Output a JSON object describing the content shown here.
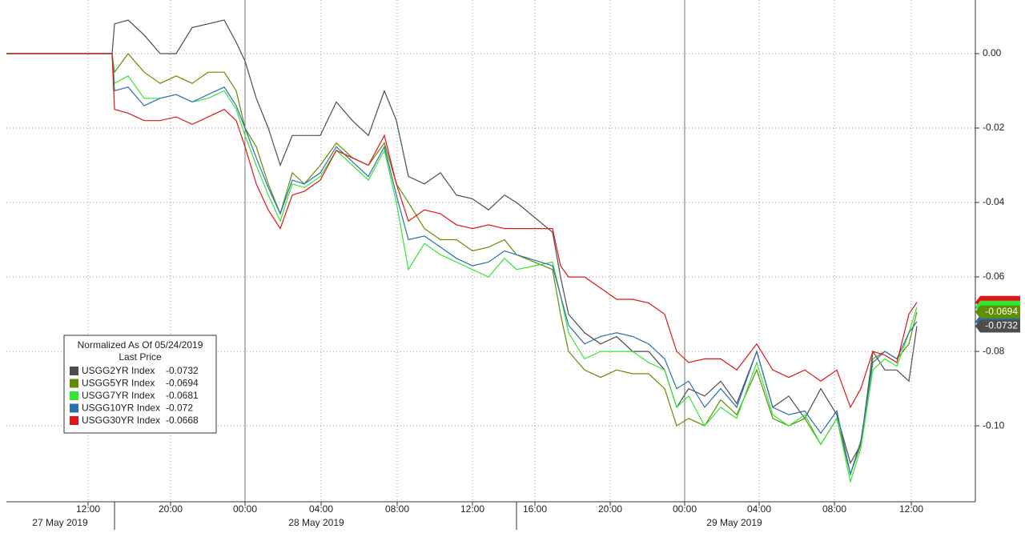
{
  "chart_data": {
    "type": "line",
    "legend_title": "Normalized As Of 05/24/2019",
    "legend_subtitle": "Last Price",
    "x": [
      0,
      6.6,
      6.75,
      7.6,
      8.6,
      9.6,
      10.6,
      11.6,
      12.6,
      13.6,
      14.35,
      14.9,
      15.6,
      16.35,
      17.1,
      17.85,
      18.6,
      19.6,
      20.6,
      21.6,
      22.6,
      23.6,
      24.35,
      25.1,
      26.1,
      27.1,
      28.1,
      29.1,
      30.1,
      31.1,
      31.85,
      34.1,
      34.6,
      35.1,
      36.1,
      37.1,
      38.1,
      39.1,
      40.1,
      41.1,
      41.85,
      42.6,
      43.6,
      44.6,
      45.6,
      46.85,
      47.85,
      48.85,
      49.85,
      50.85,
      51.85,
      52.7,
      53.35,
      54.1,
      54.85,
      55.6,
      56.35,
      56.85
    ],
    "series": [
      {
        "name": "USGG2YR Index",
        "color": "#4d4d4d",
        "values": [
          0,
          0,
          0.008,
          0.009,
          0.005,
          0,
          0,
          0.007,
          0.008,
          0.009,
          0.003,
          -0.002,
          -0.012,
          -0.02,
          -0.03,
          -0.022,
          -0.022,
          -0.022,
          -0.013,
          -0.018,
          -0.022,
          -0.01,
          -0.018,
          -0.033,
          -0.035,
          -0.032,
          -0.038,
          -0.039,
          -0.042,
          -0.038,
          -0.04,
          -0.048,
          -0.06,
          -0.07,
          -0.075,
          -0.078,
          -0.076,
          -0.08,
          -0.08,
          -0.085,
          -0.095,
          -0.09,
          -0.092,
          -0.088,
          -0.094,
          -0.08,
          -0.095,
          -0.092,
          -0.098,
          -0.09,
          -0.097,
          -0.11,
          -0.105,
          -0.08,
          -0.085,
          -0.085,
          -0.088,
          -0.0732
        ]
      },
      {
        "name": "USGG5YR Index",
        "color": "#5f8f00",
        "values": [
          0,
          0,
          -0.005,
          0,
          -0.005,
          -0.008,
          -0.006,
          -0.008,
          -0.005,
          -0.005,
          -0.01,
          -0.02,
          -0.025,
          -0.035,
          -0.043,
          -0.032,
          -0.035,
          -0.03,
          -0.024,
          -0.028,
          -0.03,
          -0.024,
          -0.035,
          -0.04,
          -0.047,
          -0.05,
          -0.05,
          -0.053,
          -0.052,
          -0.05,
          -0.054,
          -0.058,
          -0.07,
          -0.08,
          -0.085,
          -0.087,
          -0.085,
          -0.086,
          -0.086,
          -0.09,
          -0.1,
          -0.098,
          -0.1,
          -0.093,
          -0.097,
          -0.085,
          -0.098,
          -0.1,
          -0.098,
          -0.105,
          -0.098,
          -0.113,
          -0.105,
          -0.082,
          -0.08,
          -0.082,
          -0.078,
          -0.0694
        ]
      },
      {
        "name": "USGG7YR Index",
        "color": "#33e633",
        "values": [
          0,
          0,
          -0.008,
          -0.006,
          -0.012,
          -0.012,
          -0.011,
          -0.013,
          -0.012,
          -0.01,
          -0.015,
          -0.022,
          -0.03,
          -0.038,
          -0.045,
          -0.035,
          -0.036,
          -0.033,
          -0.026,
          -0.03,
          -0.034,
          -0.026,
          -0.04,
          -0.058,
          -0.051,
          -0.054,
          -0.056,
          -0.058,
          -0.06,
          -0.055,
          -0.058,
          -0.056,
          -0.065,
          -0.075,
          -0.082,
          -0.08,
          -0.08,
          -0.08,
          -0.083,
          -0.085,
          -0.095,
          -0.092,
          -0.1,
          -0.095,
          -0.098,
          -0.083,
          -0.097,
          -0.1,
          -0.097,
          -0.105,
          -0.098,
          -0.115,
          -0.106,
          -0.085,
          -0.082,
          -0.084,
          -0.075,
          -0.0681
        ]
      },
      {
        "name": "USGG10YR Index",
        "color": "#2e6eb0",
        "values": [
          0,
          0,
          -0.01,
          -0.009,
          -0.014,
          -0.012,
          -0.011,
          -0.013,
          -0.011,
          -0.009,
          -0.014,
          -0.02,
          -0.028,
          -0.036,
          -0.043,
          -0.034,
          -0.035,
          -0.032,
          -0.025,
          -0.029,
          -0.033,
          -0.025,
          -0.038,
          -0.05,
          -0.049,
          -0.052,
          -0.055,
          -0.057,
          -0.056,
          -0.053,
          -0.054,
          -0.057,
          -0.065,
          -0.073,
          -0.078,
          -0.076,
          -0.075,
          -0.076,
          -0.078,
          -0.082,
          -0.09,
          -0.088,
          -0.095,
          -0.09,
          -0.095,
          -0.08,
          -0.095,
          -0.097,
          -0.096,
          -0.102,
          -0.096,
          -0.113,
          -0.104,
          -0.083,
          -0.08,
          -0.082,
          -0.075,
          -0.072
        ]
      },
      {
        "name": "USGG30YR Index",
        "color": "#e01515",
        "values": [
          0,
          0,
          -0.015,
          -0.016,
          -0.018,
          -0.018,
          -0.017,
          -0.019,
          -0.017,
          -0.015,
          -0.018,
          -0.025,
          -0.035,
          -0.042,
          -0.047,
          -0.038,
          -0.037,
          -0.034,
          -0.026,
          -0.028,
          -0.03,
          -0.022,
          -0.035,
          -0.045,
          -0.042,
          -0.043,
          -0.046,
          -0.047,
          -0.046,
          -0.047,
          -0.047,
          -0.047,
          -0.057,
          -0.06,
          -0.06,
          -0.063,
          -0.066,
          -0.066,
          -0.067,
          -0.07,
          -0.08,
          -0.083,
          -0.082,
          -0.082,
          -0.085,
          -0.078,
          -0.085,
          -0.087,
          -0.085,
          -0.088,
          -0.085,
          -0.095,
          -0.09,
          -0.08,
          -0.081,
          -0.083,
          -0.07,
          -0.0668
        ]
      }
    ],
    "labeled_tags": [
      0,
      1
    ],
    "xlim": [
      0,
      60.5
    ],
    "xticks": [
      {
        "value": 5.1,
        "label": "12:00"
      },
      {
        "value": 10.25,
        "label": "20:00"
      },
      {
        "value": 14.9,
        "label": "00:00"
      },
      {
        "value": 19.65,
        "label": "04:00"
      },
      {
        "value": 24.4,
        "label": "08:00"
      },
      {
        "value": 29.1,
        "label": "12:00"
      },
      {
        "value": 33,
        "label": "16:00"
      },
      {
        "value": 37.7,
        "label": "20:00"
      },
      {
        "value": 42.35,
        "label": "00:00"
      },
      {
        "value": 47,
        "label": "04:00"
      },
      {
        "value": 51.7,
        "label": "08:00"
      },
      {
        "value": 56.5,
        "label": "12:00"
      }
    ],
    "date_labels": [
      {
        "value": 3.35,
        "label": "27 May 2019"
      },
      {
        "value": 19.35,
        "label": "28 May 2019"
      },
      {
        "value": 45.45,
        "label": "29 May 2019"
      }
    ],
    "date_dividers": [
      6.75,
      31.85
    ],
    "session_lines": [
      14.9,
      42.35
    ],
    "ylim": [
      -0.1204,
      0.0144
    ],
    "yticks": [
      {
        "value": 0,
        "label": "0.00"
      },
      {
        "value": -0.02,
        "label": "-0.02"
      },
      {
        "value": -0.04,
        "label": "-0.04"
      },
      {
        "value": -0.06,
        "label": "-0.06"
      },
      {
        "value": -0.08,
        "label": "-0.08"
      },
      {
        "value": -0.1,
        "label": "-0.10"
      }
    ],
    "grid": true
  }
}
